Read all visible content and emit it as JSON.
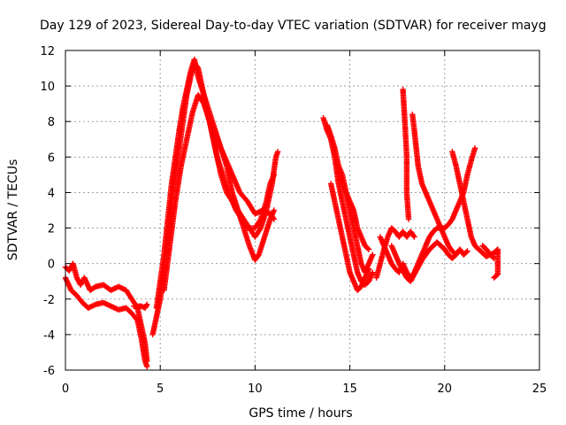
{
  "chart_data": {
    "type": "scatter",
    "title": "Day 129 of 2023, Sidereal Day-to-day VTEC variation (SDTVAR) for receiver mayg",
    "xlabel": "GPS time / hours",
    "ylabel": "SDTVAR / TECUs",
    "xlim": [
      0,
      25
    ],
    "ylim": [
      -6,
      12
    ],
    "xticks": [
      0,
      5,
      10,
      15,
      20,
      25
    ],
    "yticks": [
      -6,
      -4,
      -2,
      0,
      2,
      4,
      6,
      8,
      10,
      12
    ],
    "grid": true,
    "marker": "+",
    "marker_color": "#ff0000",
    "series": [
      {
        "name": "SDTVAR",
        "tracks": [
          [
            [
              0.0,
              -0.2
            ],
            [
              0.2,
              -0.4
            ],
            [
              0.4,
              0.0
            ],
            [
              0.6,
              -0.8
            ],
            [
              0.8,
              -1.2
            ],
            [
              1.0,
              -0.8
            ],
            [
              1.3,
              -1.5
            ],
            [
              1.6,
              -1.3
            ],
            [
              2.0,
              -1.2
            ],
            [
              2.4,
              -1.5
            ],
            [
              2.8,
              -1.3
            ],
            [
              3.2,
              -1.5
            ],
            [
              3.5,
              -2.0
            ],
            [
              3.8,
              -2.5
            ],
            [
              4.0,
              -3.5
            ],
            [
              4.2,
              -4.5
            ],
            [
              4.3,
              -5.5
            ]
          ],
          [
            [
              0.0,
              -0.8
            ],
            [
              0.3,
              -1.5
            ],
            [
              0.6,
              -1.8
            ],
            [
              0.9,
              -2.2
            ],
            [
              1.2,
              -2.5
            ],
            [
              1.6,
              -2.3
            ],
            [
              2.0,
              -2.2
            ],
            [
              2.4,
              -2.4
            ],
            [
              2.8,
              -2.6
            ],
            [
              3.2,
              -2.5
            ],
            [
              3.5,
              -2.8
            ],
            [
              3.8,
              -3.2
            ],
            [
              4.0,
              -4.2
            ],
            [
              4.2,
              -5.5
            ],
            [
              4.3,
              -5.8
            ]
          ],
          [
            [
              3.6,
              -2.4
            ],
            [
              3.8,
              -2.4
            ],
            [
              4.0,
              -2.4
            ],
            [
              4.2,
              -2.5
            ],
            [
              4.3,
              -2.3
            ]
          ],
          [
            [
              4.6,
              -4.0
            ],
            [
              4.8,
              -3.0
            ],
            [
              5.0,
              -2.0
            ],
            [
              5.2,
              -0.5
            ],
            [
              5.4,
              1.5
            ],
            [
              5.6,
              3.5
            ],
            [
              5.8,
              5.0
            ],
            [
              6.0,
              6.5
            ],
            [
              6.2,
              8.0
            ],
            [
              6.4,
              9.5
            ],
            [
              6.6,
              10.5
            ],
            [
              6.8,
              11.3
            ],
            [
              7.0,
              11.0
            ],
            [
              7.2,
              10.0
            ],
            [
              7.5,
              8.5
            ],
            [
              7.8,
              7.0
            ],
            [
              8.0,
              6.0
            ],
            [
              8.3,
              5.0
            ],
            [
              8.6,
              4.0
            ],
            [
              9.0,
              3.0
            ],
            [
              9.3,
              2.5
            ],
            [
              9.6,
              2.0
            ],
            [
              10.0,
              2.0
            ],
            [
              10.3,
              2.5
            ],
            [
              10.6,
              3.5
            ],
            [
              10.8,
              4.5
            ],
            [
              11.0,
              5.0
            ]
          ],
          [
            [
              4.8,
              -2.5
            ],
            [
              5.0,
              -1.0
            ],
            [
              5.2,
              0.5
            ],
            [
              5.4,
              2.5
            ],
            [
              5.6,
              4.5
            ],
            [
              5.8,
              6.0
            ],
            [
              6.0,
              7.5
            ],
            [
              6.2,
              8.8
            ],
            [
              6.4,
              9.8
            ],
            [
              6.6,
              10.8
            ],
            [
              6.8,
              11.5
            ],
            [
              7.0,
              10.5
            ],
            [
              7.3,
              9.5
            ],
            [
              7.6,
              8.5
            ],
            [
              7.9,
              7.5
            ],
            [
              8.2,
              6.5
            ],
            [
              8.5,
              5.5
            ],
            [
              8.8,
              4.0
            ],
            [
              9.1,
              3.0
            ],
            [
              9.4,
              2.0
            ],
            [
              9.7,
              1.0
            ],
            [
              10.0,
              0.2
            ],
            [
              10.2,
              0.5
            ],
            [
              10.5,
              1.5
            ],
            [
              10.8,
              2.5
            ],
            [
              11.0,
              3.0
            ]
          ],
          [
            [
              5.2,
              -1.5
            ],
            [
              5.5,
              1.0
            ],
            [
              5.8,
              3.5
            ],
            [
              6.1,
              5.5
            ],
            [
              6.4,
              7.0
            ],
            [
              6.7,
              8.5
            ],
            [
              7.0,
              9.5
            ],
            [
              7.3,
              9.0
            ],
            [
              7.6,
              8.0
            ],
            [
              7.9,
              6.5
            ],
            [
              8.2,
              5.0
            ],
            [
              8.5,
              4.0
            ],
            [
              8.8,
              3.5
            ],
            [
              9.1,
              3.0
            ],
            [
              9.4,
              2.5
            ],
            [
              9.7,
              2.0
            ],
            [
              10.0,
              1.5
            ],
            [
              10.3,
              2.0
            ],
            [
              10.6,
              3.0
            ],
            [
              10.9,
              4.5
            ],
            [
              11.1,
              6.0
            ],
            [
              11.2,
              6.3
            ]
          ],
          [
            [
              7.6,
              8.0
            ],
            [
              8.0,
              7.0
            ],
            [
              8.4,
              6.0
            ],
            [
              8.8,
              5.0
            ],
            [
              9.2,
              4.0
            ],
            [
              9.6,
              3.5
            ],
            [
              10.0,
              2.8
            ],
            [
              10.4,
              3.0
            ],
            [
              10.8,
              2.8
            ],
            [
              11.0,
              2.5
            ]
          ],
          [
            [
              13.6,
              8.2
            ],
            [
              13.8,
              7.5
            ],
            [
              14.0,
              7.0
            ],
            [
              14.2,
              6.0
            ],
            [
              14.4,
              4.5
            ],
            [
              14.6,
              3.5
            ],
            [
              14.8,
              2.5
            ],
            [
              15.0,
              1.5
            ],
            [
              15.2,
              0.5
            ],
            [
              15.4,
              -0.5
            ],
            [
              15.6,
              -1.0
            ],
            [
              15.8,
              -1.2
            ],
            [
              16.0,
              -1.0
            ],
            [
              16.2,
              -0.5
            ]
          ],
          [
            [
              13.8,
              7.8
            ],
            [
              14.0,
              7.2
            ],
            [
              14.2,
              6.5
            ],
            [
              14.4,
              5.5
            ],
            [
              14.6,
              4.5
            ],
            [
              14.8,
              4.0
            ],
            [
              15.0,
              3.5
            ],
            [
              15.2,
              3.0
            ],
            [
              15.4,
              2.0
            ],
            [
              15.6,
              1.5
            ],
            [
              15.8,
              1.0
            ],
            [
              16.0,
              0.8
            ]
          ],
          [
            [
              14.0,
              4.5
            ],
            [
              14.2,
              3.5
            ],
            [
              14.4,
              2.5
            ],
            [
              14.6,
              1.5
            ],
            [
              14.8,
              0.5
            ],
            [
              15.0,
              -0.5
            ],
            [
              15.2,
              -1.0
            ],
            [
              15.4,
              -1.5
            ],
            [
              15.6,
              -1.3
            ],
            [
              15.8,
              -0.8
            ],
            [
              16.0,
              -0.3
            ]
          ],
          [
            [
              14.4,
              5.5
            ],
            [
              14.6,
              5.0
            ],
            [
              14.8,
              4.0
            ],
            [
              15.0,
              3.0
            ],
            [
              15.2,
              2.0
            ],
            [
              15.4,
              1.0
            ],
            [
              15.6,
              0.0
            ],
            [
              15.8,
              -0.5
            ],
            [
              16.0,
              0.0
            ],
            [
              16.2,
              0.5
            ]
          ],
          [
            [
              16.4,
              -0.8
            ],
            [
              16.6,
              0.0
            ],
            [
              16.8,
              0.8
            ],
            [
              17.0,
              1.5
            ],
            [
              17.2,
              2.0
            ],
            [
              17.4,
              1.8
            ],
            [
              17.6,
              1.5
            ],
            [
              17.8,
              1.8
            ],
            [
              18.0,
              1.5
            ],
            [
              18.2,
              1.8
            ],
            [
              18.4,
              1.5
            ]
          ],
          [
            [
              16.6,
              1.5
            ],
            [
              16.8,
              1.0
            ],
            [
              17.0,
              0.5
            ],
            [
              17.2,
              0.0
            ],
            [
              17.4,
              -0.3
            ],
            [
              17.6,
              -0.5
            ],
            [
              17.8,
              0.0
            ],
            [
              18.0,
              -0.5
            ],
            [
              18.2,
              -0.8
            ],
            [
              18.4,
              -0.5
            ],
            [
              18.6,
              0.0
            ],
            [
              18.8,
              0.5
            ],
            [
              19.0,
              1.0
            ],
            [
              19.2,
              1.5
            ],
            [
              19.4,
              1.8
            ],
            [
              19.6,
              2.0
            ],
            [
              19.8,
              2.0
            ],
            [
              20.0,
              2.0
            ],
            [
              20.2,
              2.2
            ],
            [
              20.4,
              2.5
            ],
            [
              20.6,
              3.0
            ],
            [
              20.8,
              3.5
            ],
            [
              21.0,
              4.0
            ],
            [
              21.2,
              5.0
            ],
            [
              21.4,
              5.8
            ],
            [
              21.6,
              6.5
            ]
          ],
          [
            [
              17.2,
              1.0
            ],
            [
              17.4,
              0.5
            ],
            [
              17.6,
              0.0
            ],
            [
              17.8,
              -0.4
            ],
            [
              18.0,
              -0.8
            ],
            [
              18.2,
              -1.0
            ],
            [
              18.4,
              -0.6
            ],
            [
              18.6,
              -0.2
            ],
            [
              18.8,
              0.2
            ],
            [
              19.0,
              0.5
            ],
            [
              19.2,
              0.8
            ],
            [
              19.4,
              1.0
            ],
            [
              19.6,
              1.2
            ],
            [
              19.8,
              1.0
            ],
            [
              20.0,
              0.8
            ],
            [
              20.2,
              0.5
            ],
            [
              20.4,
              0.3
            ],
            [
              20.6,
              0.5
            ]
          ],
          [
            [
              17.8,
              9.8
            ],
            [
              17.9,
              8.0
            ],
            [
              18.0,
              6.0
            ],
            [
              18.0,
              4.0
            ],
            [
              18.1,
              2.5
            ]
          ],
          [
            [
              18.3,
              8.4
            ],
            [
              18.4,
              7.5
            ],
            [
              18.5,
              6.5
            ],
            [
              18.6,
              5.5
            ],
            [
              18.8,
              4.5
            ],
            [
              19.0,
              4.0
            ],
            [
              19.2,
              3.5
            ],
            [
              19.4,
              3.0
            ],
            [
              19.6,
              2.5
            ],
            [
              19.8,
              2.0
            ],
            [
              20.0,
              1.5
            ],
            [
              20.2,
              1.0
            ],
            [
              20.4,
              0.7
            ],
            [
              20.6,
              0.5
            ],
            [
              20.8,
              0.8
            ],
            [
              21.0,
              0.5
            ],
            [
              21.2,
              0.7
            ]
          ],
          [
            [
              20.4,
              6.3
            ],
            [
              20.6,
              5.5
            ],
            [
              20.8,
              4.5
            ],
            [
              21.0,
              3.5
            ],
            [
              21.2,
              2.5
            ],
            [
              21.4,
              1.5
            ],
            [
              21.6,
              1.0
            ],
            [
              21.8,
              0.8
            ],
            [
              22.0,
              0.6
            ],
            [
              22.2,
              0.4
            ],
            [
              22.4,
              0.5
            ],
            [
              22.6,
              0.3
            ]
          ],
          [
            [
              22.0,
              1.0
            ],
            [
              22.2,
              0.8
            ],
            [
              22.4,
              0.5
            ],
            [
              22.6,
              0.6
            ],
            [
              22.8,
              0.8
            ],
            [
              22.8,
              -0.6
            ],
            [
              22.6,
              -0.8
            ]
          ]
        ]
      }
    ]
  }
}
